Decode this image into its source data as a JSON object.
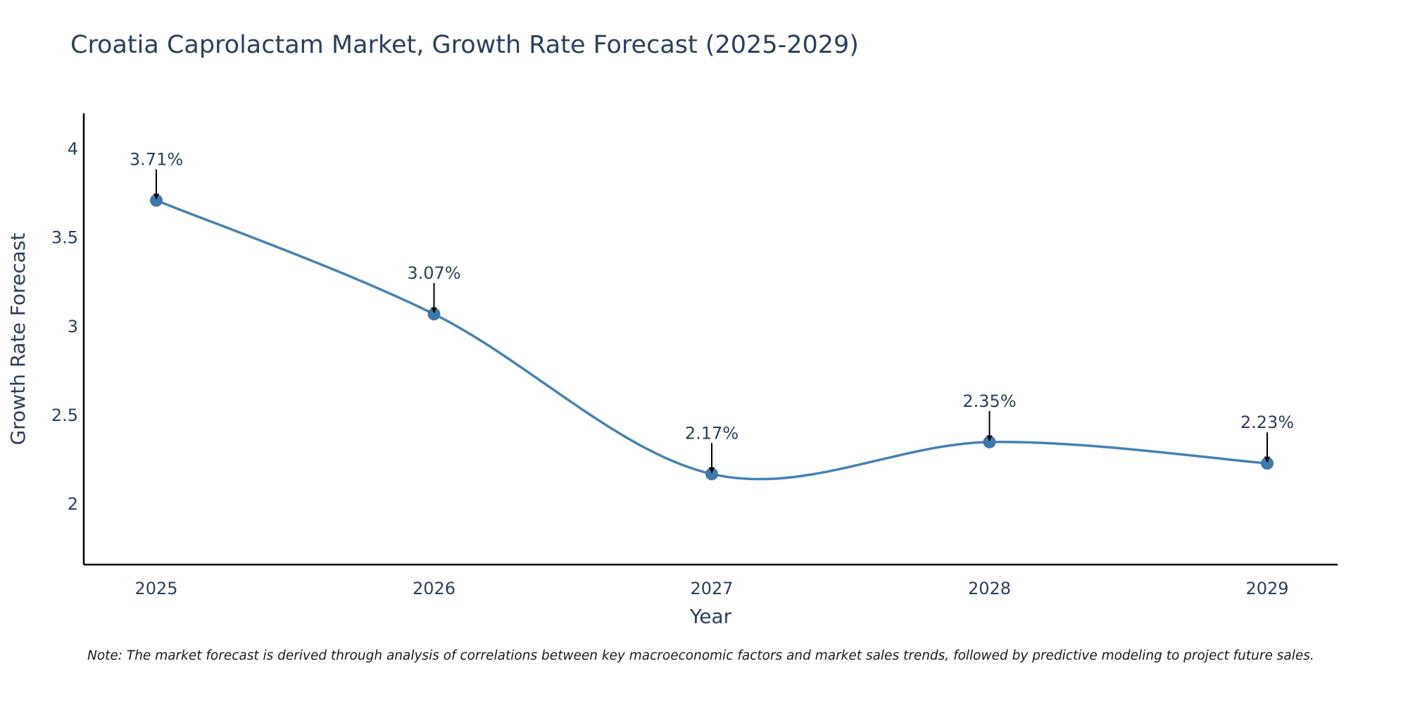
{
  "colors": {
    "line": "#4682b4",
    "marker": "#3f78ab",
    "axis": "#000000",
    "text": "#2a3f5f",
    "arrow": "#000000"
  },
  "footnote": "Note: The market forecast is derived through analysis of correlations between key macroeconomic factors and market sales trends, followed by predictive modeling to project future sales.",
  "chart_data": {
    "type": "line",
    "title": "Croatia Caprolactam Market, Growth Rate Forecast (2025-2029)",
    "xlabel": "Year",
    "ylabel": "Growth Rate Forecast",
    "categories": [
      "2025",
      "2026",
      "2027",
      "2028",
      "2029"
    ],
    "values": [
      3.71,
      3.07,
      2.17,
      2.35,
      2.23
    ],
    "data_labels": [
      "3.71%",
      "3.07%",
      "2.17%",
      "2.35%",
      "2.23%"
    ],
    "yticks": [
      2,
      2.5,
      3,
      3.5,
      4
    ],
    "ytick_labels": [
      "2",
      "2.5",
      "3",
      "3.5",
      "4"
    ],
    "ylim": [
      1.66,
      4.2
    ],
    "line_shape": "spline",
    "grid": false,
    "legend": "none"
  }
}
